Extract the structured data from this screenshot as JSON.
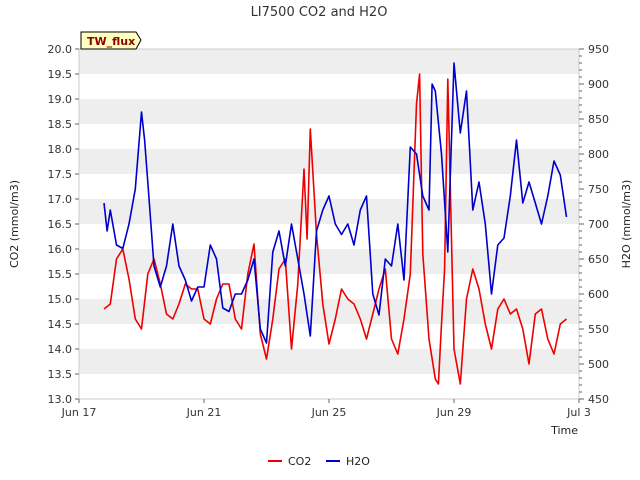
{
  "chart_data": {
    "type": "line",
    "title": "LI7500 CO2 and H2O",
    "site_label": "TW_flux",
    "xlabel": "Time",
    "ylabel_left": "CO2 (mmol/m3)",
    "ylabel_right": "H2O (mmol/m3)",
    "x_range": [
      0,
      16
    ],
    "x_unit": "days since Jun 17",
    "x_ticks": [
      {
        "x": 0,
        "label": "Jun 17"
      },
      {
        "x": 4,
        "label": "Jun 21"
      },
      {
        "x": 8,
        "label": "Jun 25"
      },
      {
        "x": 12,
        "label": "Jun 29"
      },
      {
        "x": 16,
        "label": "Jul 3"
      }
    ],
    "ylim_left": [
      13.0,
      20.0
    ],
    "yticks_left": [
      "13.0",
      "13.5",
      "14.0",
      "14.5",
      "15.0",
      "15.5",
      "16.0",
      "16.5",
      "17.0",
      "17.5",
      "18.0",
      "18.5",
      "19.0",
      "19.5",
      "20.0"
    ],
    "ylim_right": [
      450,
      950
    ],
    "yticks_right": [
      "450",
      "500",
      "550",
      "600",
      "650",
      "700",
      "750",
      "800",
      "850",
      "900",
      "950"
    ],
    "legend": [
      "CO2",
      "H2O"
    ],
    "colors": {
      "CO2": "#ee0000",
      "H2O": "#0000cc",
      "band": "#eeeeee",
      "label_bg": "#ffffc0"
    },
    "series": [
      {
        "name": "CO2",
        "axis": "left",
        "x": [
          0.8,
          1.0,
          1.2,
          1.4,
          1.6,
          1.8,
          2.0,
          2.2,
          2.4,
          2.6,
          2.8,
          3.0,
          3.2,
          3.4,
          3.6,
          3.8,
          4.0,
          4.2,
          4.4,
          4.6,
          4.8,
          5.0,
          5.2,
          5.4,
          5.6,
          5.8,
          6.0,
          6.2,
          6.4,
          6.6,
          6.8,
          7.0,
          7.2,
          7.3,
          7.4,
          7.6,
          7.8,
          8.0,
          8.2,
          8.4,
          8.6,
          8.8,
          9.0,
          9.2,
          9.4,
          9.6,
          9.8,
          10.0,
          10.2,
          10.4,
          10.6,
          10.8,
          10.9,
          11.0,
          11.2,
          11.4,
          11.5,
          11.6,
          11.7,
          11.8,
          12.0,
          12.2,
          12.4,
          12.6,
          12.8,
          13.0,
          13.2,
          13.4,
          13.6,
          13.8,
          14.0,
          14.2,
          14.4,
          14.6,
          14.8,
          15.0,
          15.2,
          15.4,
          15.6
        ],
        "values": [
          14.8,
          14.9,
          15.8,
          16.0,
          15.4,
          14.6,
          14.4,
          15.5,
          15.8,
          15.3,
          14.7,
          14.6,
          14.9,
          15.3,
          15.2,
          15.2,
          14.6,
          14.5,
          15.0,
          15.3,
          15.3,
          14.6,
          14.4,
          15.5,
          16.1,
          14.3,
          13.8,
          14.6,
          15.6,
          15.8,
          14.0,
          15.3,
          17.6,
          16.2,
          18.4,
          16.3,
          14.9,
          14.1,
          14.6,
          15.2,
          15.0,
          14.9,
          14.6,
          14.2,
          14.7,
          15.2,
          15.6,
          14.2,
          13.9,
          14.6,
          15.5,
          18.9,
          19.5,
          15.9,
          14.2,
          13.4,
          13.3,
          14.5,
          15.6,
          19.4,
          14.0,
          13.3,
          15.0,
          15.6,
          15.2,
          14.5,
          14.0,
          14.8,
          15.0,
          14.7,
          14.8,
          14.4,
          13.7,
          14.7,
          14.8,
          14.2,
          13.9,
          14.5,
          14.6
        ]
      },
      {
        "name": "H2O",
        "axis": "right",
        "x": [
          0.8,
          0.9,
          1.0,
          1.2,
          1.4,
          1.6,
          1.8,
          2.0,
          2.1,
          2.2,
          2.3,
          2.4,
          2.6,
          2.8,
          3.0,
          3.2,
          3.4,
          3.6,
          3.8,
          4.0,
          4.2,
          4.4,
          4.6,
          4.8,
          5.0,
          5.2,
          5.4,
          5.6,
          5.8,
          6.0,
          6.2,
          6.4,
          6.6,
          6.8,
          7.0,
          7.2,
          7.4,
          7.6,
          7.8,
          8.0,
          8.2,
          8.4,
          8.6,
          8.8,
          9.0,
          9.2,
          9.4,
          9.6,
          9.8,
          10.0,
          10.2,
          10.4,
          10.6,
          10.8,
          11.0,
          11.2,
          11.3,
          11.4,
          11.6,
          11.8,
          12.0,
          12.2,
          12.4,
          12.6,
          12.8,
          13.0,
          13.2,
          13.4,
          13.6,
          13.8,
          14.0,
          14.2,
          14.4,
          14.6,
          14.8,
          15.0,
          15.2,
          15.4,
          15.6
        ],
        "values": [
          730,
          690,
          720,
          670,
          665,
          700,
          750,
          860,
          820,
          760,
          700,
          640,
          610,
          640,
          700,
          640,
          620,
          590,
          610,
          610,
          670,
          650,
          580,
          575,
          600,
          600,
          620,
          650,
          550,
          530,
          660,
          690,
          640,
          700,
          650,
          600,
          540,
          690,
          720,
          740,
          700,
          685,
          700,
          670,
          720,
          740,
          600,
          570,
          650,
          640,
          700,
          620,
          810,
          800,
          740,
          720,
          900,
          890,
          800,
          660,
          930,
          830,
          890,
          720,
          760,
          700,
          600,
          670,
          680,
          740,
          820,
          730,
          760,
          730,
          700,
          740,
          790,
          770,
          710
        ]
      }
    ]
  }
}
